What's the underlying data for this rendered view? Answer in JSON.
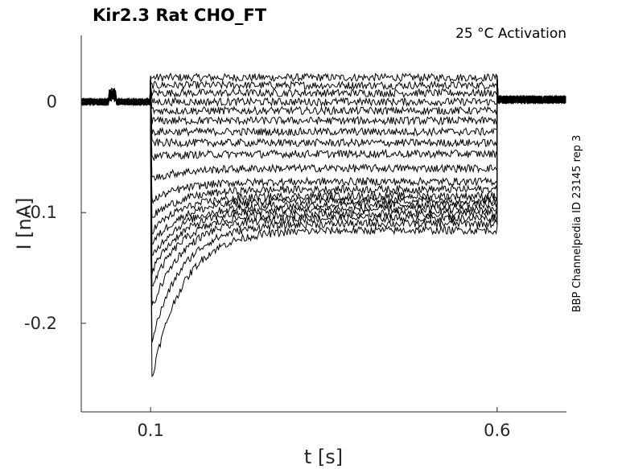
{
  "chart_data": {
    "type": "line",
    "title": "Kir2.3  Rat  CHO_FT",
    "condition": "25 °C  Activation",
    "side_label": "BBP Channelpedia ID 23145 rep 3",
    "xlabel": "t [s]",
    "ylabel": "I [nA]",
    "xlim": [
      0.0,
      0.7
    ],
    "ylim": [
      -0.28,
      0.06
    ],
    "xticks": [
      0.1,
      0.6
    ],
    "xtick_labels": [
      "0.1",
      "0.6"
    ],
    "yticks": [
      0,
      -0.1,
      -0.2
    ],
    "ytick_labels": [
      "0",
      "-0.1",
      "-0.2"
    ],
    "grid": false,
    "legend": "none",
    "step": {
      "start_s": 0.1,
      "end_s": 0.6
    },
    "series_count": 20,
    "steady_state_currents_nA": [
      0.022,
      0.015,
      0.008,
      0.0,
      -0.008,
      -0.017,
      -0.027,
      -0.037,
      -0.047,
      -0.06,
      -0.072,
      -0.079,
      -0.085,
      -0.089,
      -0.093,
      -0.097,
      -0.101,
      -0.105,
      -0.11,
      -0.116
    ],
    "initial_peak_currents_nA": [
      0.022,
      0.015,
      0.008,
      0.0,
      -0.008,
      -0.017,
      -0.027,
      -0.037,
      -0.05,
      -0.07,
      -0.09,
      -0.105,
      -0.118,
      -0.13,
      -0.142,
      -0.155,
      -0.17,
      -0.19,
      -0.22,
      -0.255
    ],
    "line_color": "#000000"
  }
}
